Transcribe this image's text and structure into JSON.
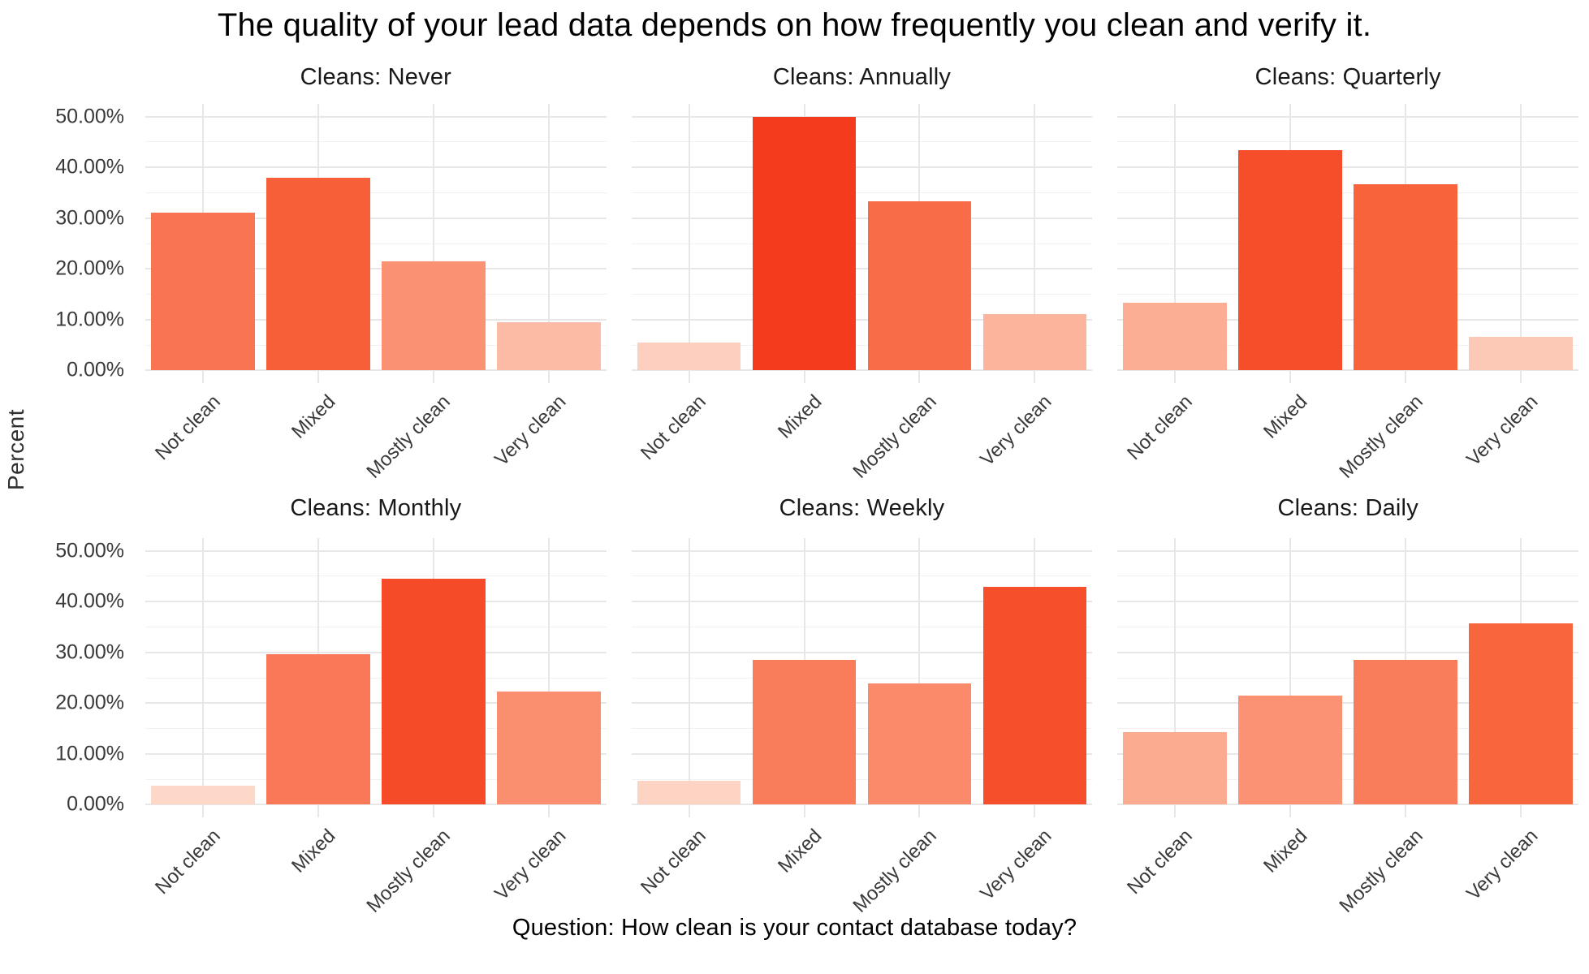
{
  "chart_data": {
    "type": "bar",
    "title": "The quality of your lead data depends on how frequently you clean and verify it.",
    "ylabel": "Percent",
    "xlabel": "Question: How clean is your contact database today?",
    "categories": [
      "Not clean",
      "Mixed",
      "Mostly clean",
      "Very clean"
    ],
    "y_axis": {
      "tick_values": [
        0,
        10,
        20,
        30,
        40,
        50
      ],
      "tick_labels": [
        "0.00%",
        "10.00%",
        "20.00%",
        "30.00%",
        "40.00%",
        "50.00%"
      ],
      "minor_tick_values": [
        5,
        15,
        25,
        35,
        45
      ],
      "display_min": -2.5,
      "display_max": 52.5
    },
    "facets": [
      {
        "title": "Cleans: Never",
        "values": [
          31.03,
          37.93,
          21.55,
          9.48
        ]
      },
      {
        "title": "Cleans: Annually",
        "values": [
          5.56,
          50.0,
          33.33,
          11.11
        ]
      },
      {
        "title": "Cleans: Quarterly",
        "values": [
          13.33,
          43.33,
          36.67,
          6.67
        ]
      },
      {
        "title": "Cleans: Monthly",
        "values": [
          3.7,
          29.63,
          44.44,
          22.22
        ]
      },
      {
        "title": "Cleans: Weekly",
        "values": [
          4.76,
          28.57,
          23.81,
          42.86
        ]
      },
      {
        "title": "Cleans: Daily",
        "values": [
          14.29,
          21.43,
          28.57,
          35.71
        ]
      }
    ],
    "fill_gradient_stops": [
      [
        0,
        "#FEE5D8"
      ],
      [
        5,
        "#FDD2C2"
      ],
      [
        10,
        "#FCB8A0"
      ],
      [
        15,
        "#FBA98C"
      ],
      [
        20,
        "#FA9678"
      ],
      [
        25,
        "#FA8766"
      ],
      [
        30,
        "#F97757"
      ],
      [
        35,
        "#F8683F"
      ],
      [
        40,
        "#F75834"
      ],
      [
        45,
        "#F64926"
      ],
      [
        50,
        "#F43B1D"
      ]
    ],
    "grid": {
      "major_color": "#e7e7e7",
      "minor_color": "#f1f1f1",
      "background": "#ffffff",
      "legend": "none"
    }
  }
}
